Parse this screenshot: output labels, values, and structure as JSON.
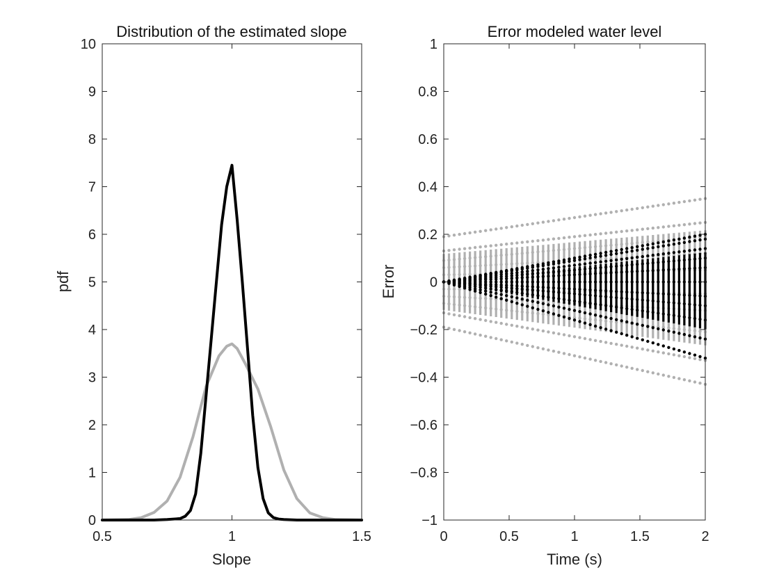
{
  "colors": {
    "series_black": "#000000",
    "series_gray": "#b0b0b0",
    "axes": "#262626"
  },
  "chart_data": [
    {
      "type": "line",
      "title": "Distribution of the estimated slope",
      "xlabel": "Slope",
      "ylabel": "pdf",
      "xlim": [
        0.5,
        1.5
      ],
      "ylim": [
        0,
        10
      ],
      "xticks": [
        0.5,
        1,
        1.5
      ],
      "xtick_labels": [
        "0.5",
        "1",
        "1.5"
      ],
      "yticks": [
        0,
        1,
        2,
        3,
        4,
        5,
        6,
        7,
        8,
        9,
        10
      ],
      "ytick_labels": [
        "0",
        "1",
        "2",
        "3",
        "4",
        "5",
        "6",
        "7",
        "8",
        "9",
        "10"
      ],
      "grid": false,
      "series": [
        {
          "color": "black",
          "x": [
            0.5,
            0.7,
            0.75,
            0.8,
            0.82,
            0.84,
            0.86,
            0.88,
            0.9,
            0.92,
            0.94,
            0.96,
            0.98,
            1.0,
            1.02,
            1.04,
            1.06,
            1.08,
            1.1,
            1.12,
            1.14,
            1.16,
            1.18,
            1.2,
            1.25,
            1.5
          ],
          "y": [
            0,
            0,
            0.01,
            0.03,
            0.08,
            0.2,
            0.55,
            1.4,
            2.6,
            3.8,
            5.0,
            6.2,
            7.0,
            7.45,
            6.3,
            5.0,
            3.6,
            2.2,
            1.1,
            0.45,
            0.15,
            0.05,
            0.02,
            0.01,
            0,
            0
          ]
        },
        {
          "color": "gray",
          "x": [
            0.5,
            0.6,
            0.65,
            0.7,
            0.75,
            0.8,
            0.85,
            0.9,
            0.95,
            0.98,
            1.0,
            1.02,
            1.05,
            1.1,
            1.15,
            1.2,
            1.25,
            1.3,
            1.35,
            1.4,
            1.5
          ],
          "y": [
            0,
            0.01,
            0.05,
            0.16,
            0.4,
            0.9,
            1.75,
            2.8,
            3.45,
            3.65,
            3.7,
            3.6,
            3.3,
            2.75,
            1.95,
            1.05,
            0.45,
            0.15,
            0.05,
            0.01,
            0
          ]
        }
      ]
    },
    {
      "type": "scatter",
      "title": "Error modeled water level",
      "xlabel": "Time (s)",
      "ylabel": "Error",
      "xlim": [
        0,
        2
      ],
      "ylim": [
        -1,
        1
      ],
      "xticks": [
        0,
        0.5,
        1,
        1.5,
        2
      ],
      "xtick_labels": [
        "0",
        "0.5",
        "1",
        "1.5",
        "2"
      ],
      "yticks": [
        -1,
        -0.8,
        -0.6,
        -0.4,
        -0.2,
        0,
        0.2,
        0.4,
        0.6,
        0.8,
        1
      ],
      "ytick_labels": [
        "−1",
        "−0.8",
        "−0.6",
        "−0.4",
        "−0.2",
        "0",
        "0.2",
        "0.4",
        "0.6",
        "0.8",
        "1"
      ],
      "grid": false,
      "time_range": [
        0,
        2
      ],
      "time_step": 0.04,
      "series": [
        {
          "color": "gray",
          "intercepts": [
            0.19,
            0.13,
            0.09,
            0.06,
            0.03,
            0.0,
            -0.03,
            -0.06,
            -0.09,
            -0.13,
            -0.19
          ],
          "slopes": [
            0.08,
            0.06,
            0.05,
            0.03,
            0.01,
            0.0,
            -0.01,
            -0.03,
            -0.06,
            -0.1,
            -0.12
          ]
        },
        {
          "color": "black",
          "intercepts": [
            0.0,
            0.0,
            0.0,
            0.0,
            0.0,
            0.0,
            0.0,
            0.0,
            0.0,
            0.0,
            0.0
          ],
          "slopes": [
            0.1,
            0.09,
            0.07,
            0.05,
            0.03,
            0.0,
            -0.03,
            -0.05,
            -0.08,
            -0.12,
            -0.16
          ]
        }
      ]
    }
  ]
}
